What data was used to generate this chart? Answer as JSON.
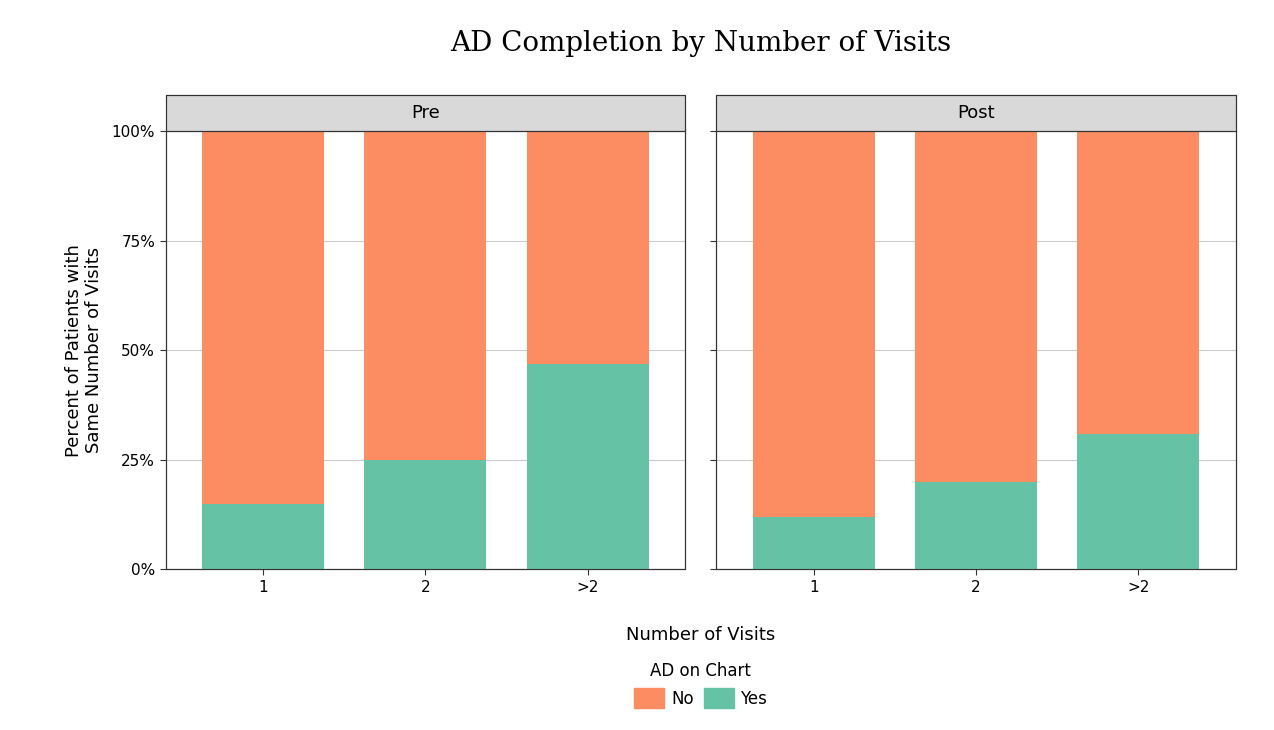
{
  "title": "AD Completion by Number of Visits",
  "xlabel": "Number of Visits",
  "ylabel": "Percent of Patients with\nSame Number of Visits",
  "panels": [
    "Pre",
    "Post"
  ],
  "categories": [
    "1",
    "2",
    ">2"
  ],
  "yes_values": {
    "Pre": [
      0.15,
      0.25,
      0.47
    ],
    "Post": [
      0.12,
      0.2,
      0.31
    ]
  },
  "color_yes": "#66C2A5",
  "color_no": "#FC8D62",
  "legend_label_no": "No",
  "legend_label_yes": "Yes",
  "legend_title": "AD on Chart",
  "yticks": [
    0.0,
    0.25,
    0.5,
    0.75,
    1.0
  ],
  "ytick_labels": [
    "0%",
    "25%",
    "50%",
    "75%",
    "100%"
  ],
  "panel_header_color": "#D9D9D9",
  "panel_header_fontsize": 13,
  "title_fontsize": 20,
  "axis_label_fontsize": 13,
  "tick_fontsize": 11,
  "bar_width": 0.75,
  "background_color": "#FFFFFF",
  "grid_color": "#CCCCCC",
  "spine_color": "#333333"
}
